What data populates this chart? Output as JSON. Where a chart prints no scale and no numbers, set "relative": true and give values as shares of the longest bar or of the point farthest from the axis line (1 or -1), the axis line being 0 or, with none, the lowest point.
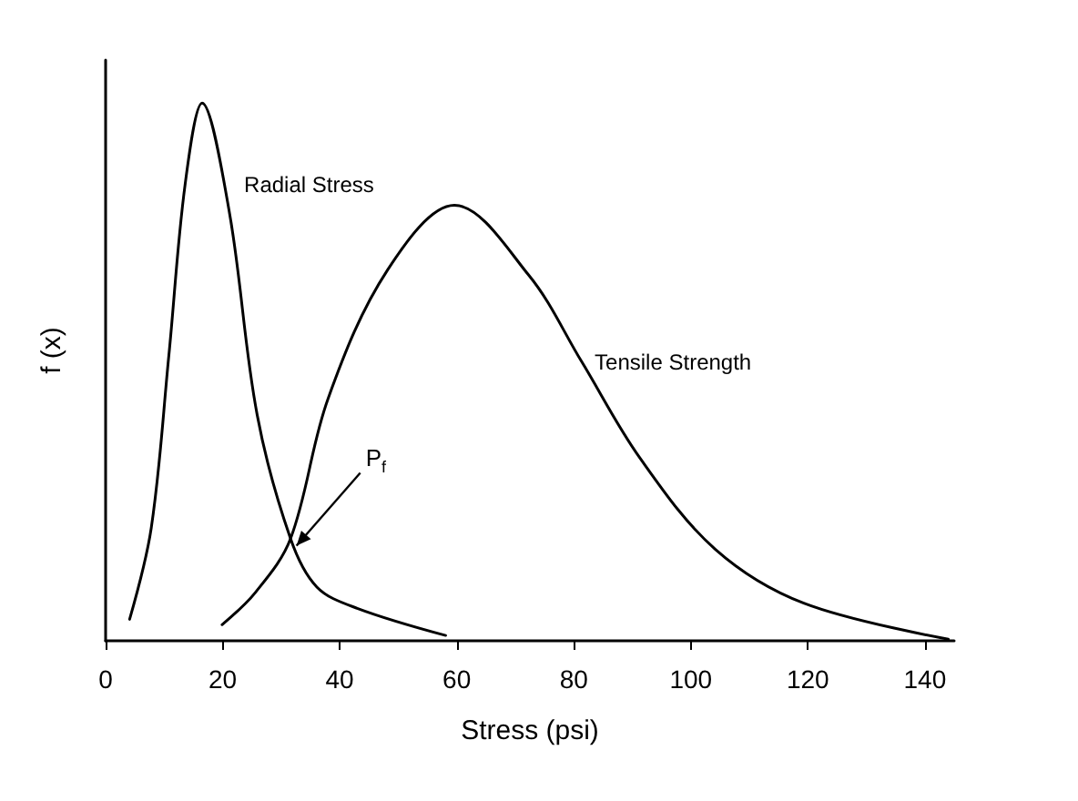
{
  "chart_data": {
    "type": "line",
    "relative": true,
    "xlabel": "Stress (psi)",
    "ylabel": "f (x)",
    "xlim": [
      0,
      145
    ],
    "xticks": [
      0,
      20,
      40,
      60,
      80,
      100,
      120,
      140
    ],
    "grid": false,
    "legend": false,
    "marker": "none",
    "line_style": "solid",
    "tick_labels": "x",
    "series": [
      {
        "name": "Radial Stress",
        "color": "#000000",
        "x": [
          4.1,
          7.8,
          10.8,
          13.6,
          16.5,
          21.1,
          25.9,
          31.6,
          36.1,
          43.1,
          58.1
        ],
        "values": [
          0.04,
          0.21,
          0.53,
          0.85,
          1.0,
          0.8,
          0.42,
          0.19,
          0.1,
          0.06,
          0.01
        ]
      },
      {
        "name": "Tensile Strength",
        "color": "#000000",
        "x": [
          19.9,
          25.6,
          31.6,
          38,
          48.2,
          59.6,
          72.3,
          81.3,
          91.3,
          104.2,
          119.3,
          144
        ],
        "values": [
          0.03,
          0.09,
          0.19,
          0.45,
          0.69,
          0.81,
          0.68,
          0.52,
          0.34,
          0.17,
          0.07,
          0.003
        ]
      }
    ],
    "annotations": [
      {
        "text": "P$_{f}$",
        "x": 32,
        "y": 0.17
      }
    ]
  }
}
